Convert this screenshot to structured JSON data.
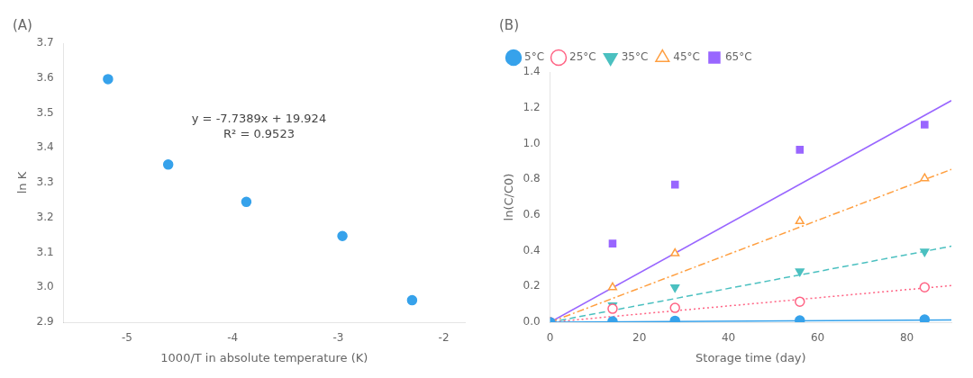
{
  "chart_data": [
    {
      "type": "scatter",
      "title": "(A)",
      "xlabel": "1000/T in absolute temperature (K)",
      "ylabel": "ln K",
      "x": [
        -5.18,
        -4.61,
        -3.87,
        -2.96,
        -2.3
      ],
      "values": [
        3.597,
        3.352,
        3.245,
        3.147,
        2.963
      ],
      "marker": "circle",
      "xlim": [
        -5.6,
        -1.8
      ],
      "ylim": [
        2.9,
        3.7
      ],
      "xticks": [
        -5,
        -4,
        -3,
        -2
      ],
      "yticks": [
        2.9,
        {
          "value": 3.0,
          "label": "3.0"
        },
        3.1,
        3.2,
        3.3,
        3.4,
        3.5,
        3.6,
        3.7
      ],
      "annotations": [
        {
          "text": [
            "y = -7.7389x + 19.924",
            "R² = 0.9523"
          ],
          "x": -3.75,
          "y": 3.46
        }
      ],
      "grid": false,
      "legend": false
    },
    {
      "type": "scatter",
      "title": "(B)",
      "xlabel": "Storage time (day)",
      "ylabel": "ln(C/C0)",
      "xlim": [
        0,
        90
      ],
      "ylim": [
        0,
        1.4
      ],
      "xticks": [
        0,
        20,
        40,
        60,
        80
      ],
      "yticks": [
        {
          "value": 0.0,
          "label": "0.0"
        },
        0.2,
        0.4,
        0.6,
        0.8,
        {
          "value": 1.0,
          "label": "1.0"
        },
        1.2,
        1.4
      ],
      "grid": false,
      "legend": "upper left",
      "series": [
        {
          "name": "5°C",
          "x": [
            0,
            14,
            28,
            56,
            84
          ],
          "values": [
            0.0,
            0.005,
            0.008,
            0.01,
            0.015
          ],
          "marker": "circle",
          "line_style": "solid",
          "fit": {
            "x": [
              0,
              90
            ],
            "values": [
              0.0,
              0.013
            ]
          }
        },
        {
          "name": "25°C",
          "x": [
            0,
            14,
            28,
            56,
            84
          ],
          "values": [
            0.0,
            0.075,
            0.08,
            0.115,
            0.195
          ],
          "marker": "circle-open",
          "line_style": "dotted",
          "fit": {
            "x": [
              0,
              90
            ],
            "values": [
              0.0,
              0.205
            ]
          }
        },
        {
          "name": "35°C",
          "x": [
            0,
            14,
            28,
            56,
            84
          ],
          "values": [
            0.0,
            0.095,
            0.195,
            0.285,
            0.395
          ],
          "marker": "triangle-down",
          "line_style": "dashed",
          "fit": {
            "x": [
              0,
              90
            ],
            "values": [
              0.0,
              0.425
            ]
          }
        },
        {
          "name": "45°C",
          "x": [
            0,
            14,
            28,
            56,
            84
          ],
          "values": [
            0.0,
            0.195,
            0.385,
            0.565,
            0.805
          ],
          "marker": "triangle-up-open",
          "line_style": "dashdot",
          "fit": {
            "x": [
              0,
              90
            ],
            "values": [
              0.0,
              0.855
            ]
          }
        },
        {
          "name": "65°C",
          "x": [
            0,
            14,
            28,
            56,
            84
          ],
          "values": [
            0.0,
            0.44,
            0.77,
            0.965,
            1.105
          ],
          "marker": "square",
          "line_style": "solid",
          "fit": {
            "x": [
              0,
              90
            ],
            "values": [
              0.0,
              1.24
            ]
          }
        }
      ]
    }
  ]
}
